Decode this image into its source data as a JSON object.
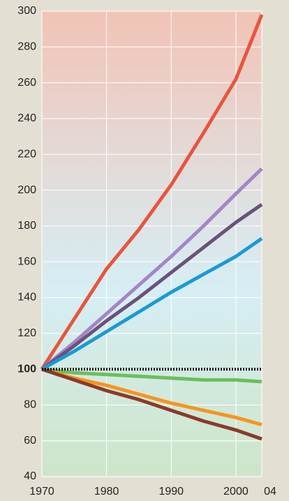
{
  "chart_data": {
    "type": "line",
    "x": [
      1970,
      1975,
      1980,
      1985,
      1990,
      1995,
      2000,
      2004
    ],
    "series": [
      {
        "color": "#e8553e",
        "values": [
          100,
          128,
          156,
          178,
          203,
          232,
          262,
          298
        ]
      },
      {
        "color": "#a584c9",
        "values": [
          100,
          115,
          131,
          147,
          163,
          180,
          198,
          212
        ]
      },
      {
        "color": "#6b5179",
        "values": [
          100,
          113,
          127,
          140,
          154,
          168,
          182,
          192
        ]
      },
      {
        "color": "#1a9ad6",
        "values": [
          100,
          110,
          121,
          132,
          143,
          153,
          163,
          173
        ]
      },
      {
        "color": "#6cbf5a",
        "values": [
          100,
          98,
          97,
          96,
          95,
          94,
          94,
          93
        ]
      },
      {
        "color": "#f7941d",
        "values": [
          100,
          95,
          91,
          86,
          81,
          77,
          73,
          69
        ]
      },
      {
        "color": "#8b3a2a",
        "values": [
          100,
          94,
          88,
          83,
          77,
          71,
          66,
          61
        ]
      },
      {
        "color": "#111111",
        "dashed": true,
        "values": [
          100,
          100,
          100,
          100,
          100,
          100,
          100,
          100
        ]
      }
    ],
    "xlim": [
      1970,
      2004
    ],
    "xticks": [
      1970,
      1980,
      1990,
      2000,
      {
        "value": 2004,
        "label": "04"
      }
    ],
    "ylim": [
      40,
      300
    ],
    "yticks": [
      40,
      60,
      80,
      100,
      120,
      140,
      160,
      180,
      200,
      220,
      240,
      260,
      280,
      300
    ],
    "bold_ytick": 100,
    "grid": true
  }
}
